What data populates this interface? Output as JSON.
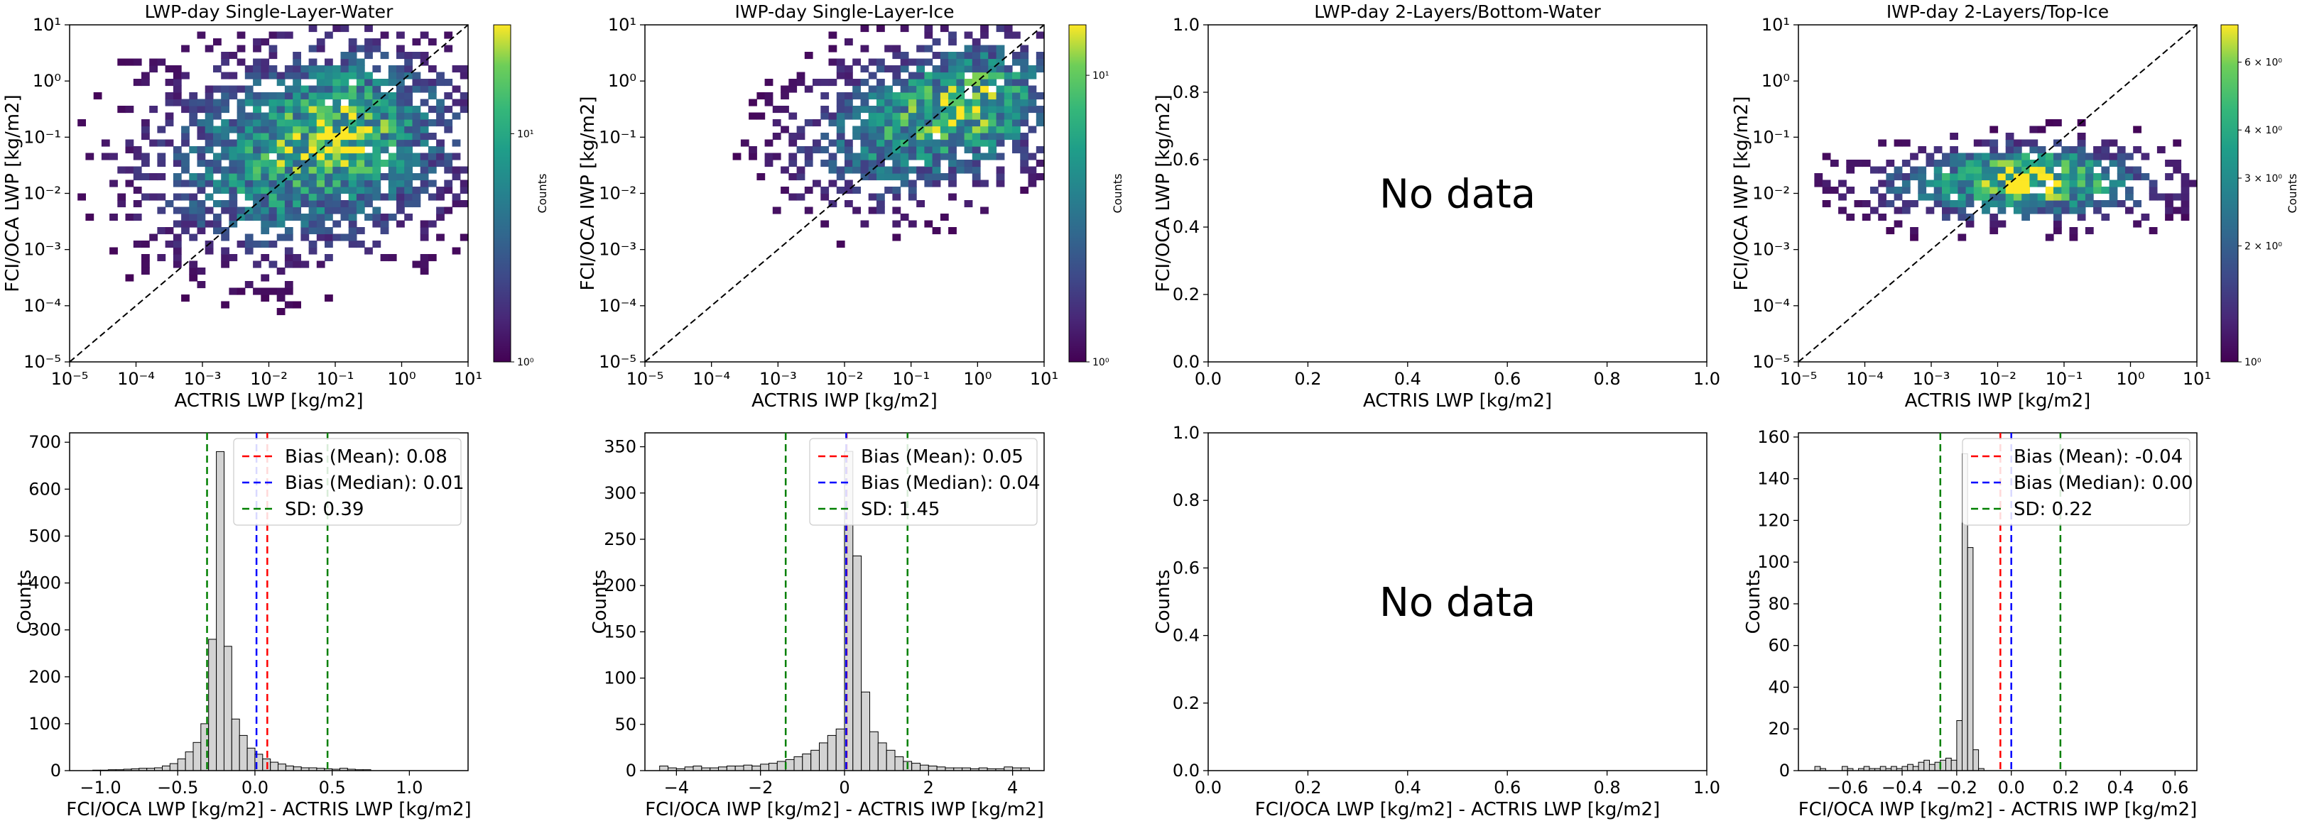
{
  "chart_data": [
    {
      "type": "heatmap",
      "panel": "top-1",
      "title": "LWP-day Single-Layer-Water",
      "xlabel": "ACTRIS LWP [kg/m2]",
      "ylabel": "FCI/OCA LWP [kg/m2]",
      "scale": "log",
      "xlim": [
        1e-05,
        10
      ],
      "ylim": [
        1e-05,
        10
      ],
      "xticks": [
        "10⁻⁵",
        "10⁻⁴",
        "10⁻³",
        "10⁻²",
        "10⁻¹",
        "10⁰",
        "10¹"
      ],
      "yticks": [
        "10⁻⁵",
        "10⁻⁴",
        "10⁻³",
        "10⁻²",
        "10⁻¹",
        "10⁰",
        "10¹"
      ],
      "colorbar": {
        "label": "Counts",
        "scale": "log",
        "range": [
          1,
          30
        ],
        "ticks": [
          "10⁰",
          "10¹"
        ]
      },
      "one_to_one_line": true,
      "density_blobs": [
        {
          "x": 0.03,
          "y": 0.05,
          "sx": 1.6,
          "sy": 1.2,
          "w": 0.55
        },
        {
          "x": 0.3,
          "y": 0.3,
          "sx": 1.0,
          "sy": 0.9,
          "w": 0.35
        },
        {
          "x": 0.003,
          "y": 0.008,
          "sx": 1.0,
          "sy": 0.9,
          "w": 0.15
        }
      ],
      "peak_count": 30
    },
    {
      "type": "heatmap",
      "panel": "top-2",
      "title": "IWP-day Single-Layer-Ice",
      "xlabel": "ACTRIS IWP [kg/m2]",
      "ylabel": "FCI/OCA IWP [kg/m2]",
      "scale": "log",
      "xlim": [
        1e-05,
        10
      ],
      "ylim": [
        1e-05,
        10
      ],
      "xticks": [
        "10⁻⁵",
        "10⁻⁴",
        "10⁻³",
        "10⁻²",
        "10⁻¹",
        "10⁰",
        "10¹"
      ],
      "yticks": [
        "10⁻⁵",
        "10⁻⁴",
        "10⁻³",
        "10⁻²",
        "10⁻¹",
        "10⁰",
        "10¹"
      ],
      "colorbar": {
        "label": "Counts",
        "scale": "log",
        "range": [
          1,
          15
        ],
        "ticks": [
          "10⁰",
          "10¹"
        ]
      },
      "one_to_one_line": true,
      "density_blobs": [
        {
          "x": 0.3,
          "y": 0.3,
          "sx": 1.2,
          "sy": 0.8,
          "w": 0.6
        },
        {
          "x": 0.02,
          "y": 0.03,
          "sx": 1.0,
          "sy": 0.7,
          "w": 0.3
        },
        {
          "x": 2.0,
          "y": 1.0,
          "sx": 0.7,
          "sy": 0.7,
          "w": 0.3
        }
      ],
      "peak_count": 15
    },
    {
      "type": "heatmap",
      "panel": "top-3",
      "title": "LWP-day 2-Layers/Bottom-Water",
      "xlabel": "ACTRIS LWP [kg/m2]",
      "ylabel": "FCI/OCA LWP [kg/m2]",
      "scale": "linear",
      "xlim": [
        0,
        1
      ],
      "ylim": [
        0,
        1
      ],
      "xticks": [
        "0.0",
        "0.2",
        "0.4",
        "0.6",
        "0.8",
        "1.0"
      ],
      "yticks": [
        "0.0",
        "0.2",
        "0.4",
        "0.6",
        "0.8",
        "1.0"
      ],
      "annotation": "No data"
    },
    {
      "type": "heatmap",
      "panel": "top-4",
      "title": "IWP-day 2-Layers/Top-Ice",
      "xlabel": "ACTRIS IWP [kg/m2]",
      "ylabel": "FCI/OCA IWP [kg/m2]",
      "scale": "log",
      "xlim": [
        1e-05,
        10
      ],
      "ylim": [
        1e-05,
        10
      ],
      "xticks": [
        "10⁻⁵",
        "10⁻⁴",
        "10⁻³",
        "10⁻²",
        "10⁻¹",
        "10⁰",
        "10¹"
      ],
      "yticks": [
        "10⁻⁵",
        "10⁻⁴",
        "10⁻³",
        "10⁻²",
        "10⁻¹",
        "10⁰",
        "10¹"
      ],
      "colorbar": {
        "label": "Counts",
        "scale": "log",
        "range": [
          1,
          7.5
        ],
        "ticks": [
          "10⁰",
          "2 × 10⁰",
          "3 × 10⁰",
          "4 × 10⁰",
          "6 × 10⁰"
        ]
      },
      "one_to_one_line": true,
      "density_blobs": [
        {
          "x": 0.02,
          "y": 0.015,
          "sx": 1.5,
          "sy": 0.45,
          "w": 0.8
        },
        {
          "x": 0.05,
          "y": 0.03,
          "sx": 0.6,
          "sy": 0.3,
          "w": 0.2
        }
      ],
      "peak_count": 7.5
    },
    {
      "type": "bar",
      "panel": "bottom-1",
      "xlabel": "FCI/OCA LWP [kg/m2] - ACTRIS LWP [kg/m2]",
      "ylabel": "Counts",
      "xlim": [
        -1.2,
        1.38
      ],
      "ylim": [
        0,
        720
      ],
      "xticks": [
        -1.0,
        -0.5,
        0.0,
        0.5,
        1.0
      ],
      "yticks": [
        0,
        100,
        200,
        300,
        400,
        500,
        600,
        700
      ],
      "bin_start": -1.05,
      "bin_width": 0.05,
      "values": [
        1,
        1,
        2,
        2,
        3,
        4,
        5,
        5,
        6,
        10,
        15,
        25,
        40,
        60,
        100,
        280,
        680,
        265,
        110,
        75,
        48,
        35,
        25,
        18,
        14,
        10,
        8,
        6,
        6,
        5,
        4,
        3,
        5,
        3,
        2,
        2
      ],
      "lines": [
        {
          "label": "Bias (Mean): 0.08",
          "x": 0.08,
          "color": "#ff0000"
        },
        {
          "label": "Bias (Median): 0.01",
          "x": 0.01,
          "color": "#0000ff"
        },
        {
          "label": "SD: 0.39",
          "x": -0.31,
          "x2": 0.47,
          "color": "#008000"
        }
      ]
    },
    {
      "type": "bar",
      "panel": "bottom-2",
      "xlabel": "FCI/OCA IWP [kg/m2] - ACTRIS IWP [kg/m2]",
      "ylabel": "Counts",
      "xlim": [
        -4.75,
        4.75
      ],
      "ylim": [
        0,
        365
      ],
      "xticks": [
        -4,
        -2,
        0,
        2,
        4
      ],
      "yticks": [
        0,
        50,
        100,
        150,
        200,
        250,
        300,
        350
      ],
      "bin_start": -4.4,
      "bin_width": 0.2,
      "values": [
        5,
        3,
        2,
        4,
        5,
        3,
        3,
        4,
        5,
        5,
        6,
        5,
        7,
        8,
        10,
        12,
        15,
        18,
        22,
        30,
        38,
        45,
        345,
        232,
        85,
        42,
        30,
        22,
        15,
        10,
        8,
        6,
        5,
        4,
        3,
        3,
        3,
        2,
        3,
        2,
        2,
        4,
        3,
        3
      ],
      "lines": [
        {
          "label": "Bias (Mean): 0.05",
          "x": 0.05,
          "color": "#ff0000"
        },
        {
          "label": "Bias (Median): 0.04",
          "x": 0.04,
          "color": "#0000ff"
        },
        {
          "label": "SD: 1.45",
          "x": -1.4,
          "x2": 1.5,
          "color": "#008000"
        }
      ]
    },
    {
      "type": "bar",
      "panel": "bottom-3",
      "xlabel": "FCI/OCA LWP [kg/m2] - ACTRIS LWP [kg/m2]",
      "ylabel": "Counts",
      "xlim": [
        0,
        1
      ],
      "ylim": [
        0,
        1
      ],
      "xticks": [
        "0.0",
        "0.2",
        "0.4",
        "0.6",
        "0.8",
        "1.0"
      ],
      "yticks": [
        "0.0",
        "0.2",
        "0.4",
        "0.6",
        "0.8",
        "1.0"
      ],
      "annotation": "No data"
    },
    {
      "type": "bar",
      "panel": "bottom-4",
      "xlabel": "FCI/OCA IWP [kg/m2] - ACTRIS IWP [kg/m2]",
      "ylabel": "Counts",
      "xlim": [
        -0.78,
        0.68
      ],
      "ylim": [
        0,
        162
      ],
      "xticks": [
        -0.6,
        -0.4,
        -0.2,
        0.0,
        0.2,
        0.4,
        0.6
      ],
      "yticks": [
        0,
        20,
        40,
        60,
        80,
        100,
        120,
        140,
        160
      ],
      "bin_start": -0.72,
      "bin_width": 0.02,
      "values": [
        2,
        1,
        0,
        0,
        0,
        2,
        1,
        0,
        1,
        2,
        1,
        1,
        2,
        1,
        2,
        1,
        2,
        3,
        2,
        4,
        5,
        3,
        4,
        5,
        6,
        5,
        24,
        152,
        107,
        10,
        1,
        0,
        0,
        0,
        0,
        0,
        0,
        0,
        0,
        0,
        0,
        0,
        0,
        0,
        0,
        0,
        0,
        0,
        0,
        0,
        0,
        0,
        0,
        0,
        0,
        0,
        0,
        0,
        0,
        0,
        0,
        0,
        0,
        0,
        0,
        0,
        0,
        0,
        0,
        0
      ],
      "lines": [
        {
          "label": "Bias (Mean): -0.04",
          "x": -0.04,
          "color": "#ff0000"
        },
        {
          "label": "Bias (Median): 0.00",
          "x": 0.0,
          "color": "#0000ff"
        },
        {
          "label": "SD: 0.22",
          "x": -0.26,
          "x2": 0.18,
          "color": "#008000"
        }
      ]
    }
  ]
}
